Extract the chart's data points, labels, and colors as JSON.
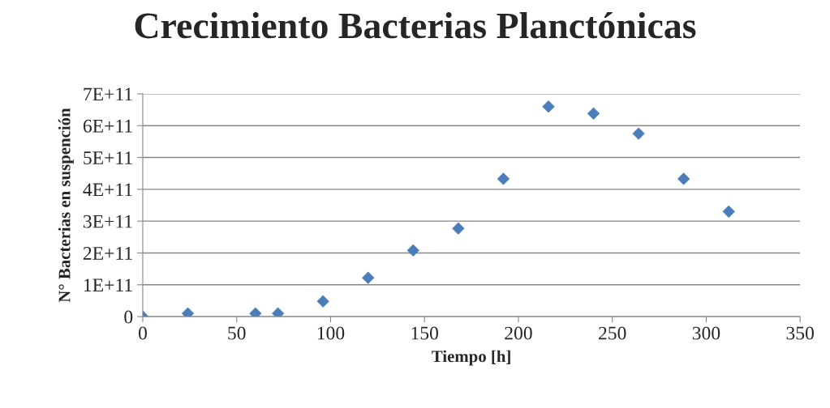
{
  "chart_data": {
    "type": "scatter",
    "title": "Crecimiento Bacterias Planctónicas",
    "xlabel": "Tiempo [h]",
    "ylabel": "N° Bacterias en suspención",
    "x": [
      0,
      24,
      60,
      72,
      96,
      120,
      144,
      168,
      192,
      216,
      240,
      264,
      288,
      312
    ],
    "series": [
      {
        "color": "#4a7ebb",
        "values": [
          0,
          10000000000.0,
          10000000000.0,
          10000000000.0,
          48000000000.0,
          122000000000.0,
          208000000000.0,
          277000000000.0,
          433000000000.0,
          660000000000.0,
          638000000000.0,
          575000000000.0,
          433000000000.0,
          330000000000.0
        ]
      }
    ],
    "xlim": [
      0,
      350
    ],
    "xticks": [
      0,
      50,
      100,
      150,
      200,
      250,
      300,
      350
    ],
    "ylim": [
      0,
      700000000000.0
    ],
    "yticks": [
      0,
      {
        "value": 100000000000.0,
        "label": "1E+11"
      },
      {
        "value": 200000000000.0,
        "label": "2E+11"
      },
      {
        "value": 300000000000.0,
        "label": "3E+11"
      },
      {
        "value": 400000000000.0,
        "label": "4E+11"
      },
      {
        "value": 500000000000.0,
        "label": "5E+11"
      },
      {
        "value": 600000000000.0,
        "label": "6E+11"
      },
      {
        "value": 700000000000.0,
        "label": "7E+11"
      }
    ],
    "grid": "y",
    "marker": "diamond",
    "legend": false
  }
}
